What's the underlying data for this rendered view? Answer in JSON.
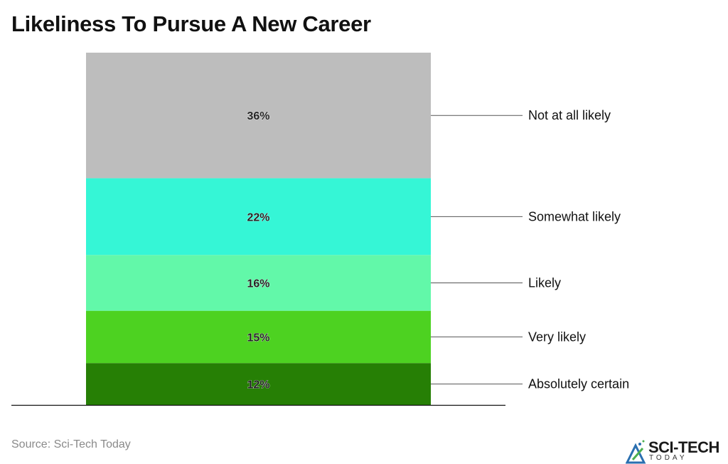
{
  "chart_data": {
    "type": "bar",
    "stacked": true,
    "title": "Likeliness To Pursue A New Career",
    "categories": [
      "Absolutely certain",
      "Very likely",
      "Likely",
      "Somewhat likely",
      "Not at all likely"
    ],
    "values": [
      12,
      15,
      16,
      22,
      36
    ],
    "data_labels": [
      "12%",
      "15%",
      "16%",
      "22%",
      "36%"
    ],
    "colors": [
      "#267f05",
      "#4dd221",
      "#62f8a9",
      "#35f6d6",
      "#bdbdbd"
    ],
    "unit": "%",
    "grid": false,
    "legend": "right, leader-line labels"
  },
  "source": "Source: Sci-Tech Today",
  "logo": {
    "text": "SCI-TECH",
    "subtext": "TODAY"
  }
}
